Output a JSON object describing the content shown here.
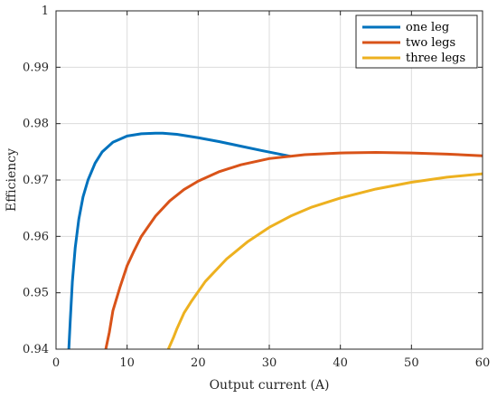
{
  "chart_data": {
    "type": "line",
    "title": "",
    "xlabel": "Output current (A)",
    "ylabel": "Efficiency",
    "xlim": [
      0,
      60
    ],
    "ylim": [
      0.94,
      1
    ],
    "xticks": [
      0,
      10,
      20,
      30,
      40,
      50,
      60
    ],
    "yticks": [
      0.94,
      0.95,
      0.96,
      0.97,
      0.98,
      0.99,
      1
    ],
    "xtick_labels": [
      "0",
      "10",
      "20",
      "30",
      "40",
      "50",
      "60"
    ],
    "ytick_labels": [
      "0.94",
      "0.95",
      "0.96",
      "0.97",
      "0.98",
      "0.99",
      "1"
    ],
    "grid": true,
    "legend_position": "top-right",
    "series": [
      {
        "name": "one leg",
        "color": "#0072BD",
        "x": [
          1.8,
          2.0,
          2.3,
          2.7,
          3.2,
          3.8,
          4.5,
          5.5,
          6.5,
          8,
          10,
          12,
          14,
          15,
          17,
          20,
          23,
          26,
          29,
          31,
          33
        ],
        "y": [
          0.94,
          0.945,
          0.952,
          0.958,
          0.963,
          0.967,
          0.97,
          0.973,
          0.975,
          0.9767,
          0.9778,
          0.9782,
          0.9783,
          0.9783,
          0.9781,
          0.9775,
          0.9768,
          0.976,
          0.9752,
          0.9747,
          0.9742
        ]
      },
      {
        "name": "two legs",
        "color": "#D95319",
        "x": [
          7.0,
          7.5,
          8,
          9,
          10,
          11,
          12,
          14,
          16,
          18,
          20,
          23,
          26,
          30,
          35,
          40,
          45,
          50,
          55,
          60
        ],
        "y": [
          0.94,
          0.943,
          0.9468,
          0.951,
          0.9548,
          0.9575,
          0.96,
          0.9636,
          0.9663,
          0.9683,
          0.9698,
          0.9715,
          0.9727,
          0.9738,
          0.9745,
          0.9748,
          0.9749,
          0.9748,
          0.9746,
          0.9743
        ]
      },
      {
        "name": "three legs",
        "color": "#EDB120",
        "x": [
          15.8,
          16.5,
          17,
          18,
          19,
          21,
          24,
          27,
          30,
          33,
          36,
          40,
          45,
          50,
          55,
          60
        ],
        "y": [
          0.94,
          0.942,
          0.9436,
          0.9464,
          0.9484,
          0.952,
          0.956,
          0.9591,
          0.9616,
          0.9636,
          0.9652,
          0.9668,
          0.9684,
          0.9696,
          0.9705,
          0.9711
        ]
      }
    ]
  }
}
